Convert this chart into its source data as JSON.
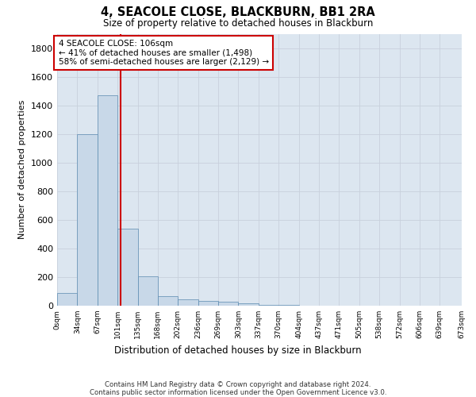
{
  "title": "4, SEACOLE CLOSE, BLACKBURN, BB1 2RA",
  "subtitle": "Size of property relative to detached houses in Blackburn",
  "xlabel": "Distribution of detached houses by size in Blackburn",
  "ylabel": "Number of detached properties",
  "footer_line1": "Contains HM Land Registry data © Crown copyright and database right 2024.",
  "footer_line2": "Contains public sector information licensed under the Open Government Licence v3.0.",
  "bar_edges": [
    0,
    33.5,
    67,
    100.5,
    134,
    167.5,
    201,
    234.5,
    268,
    301.5,
    335,
    368.5,
    402,
    435.5,
    469,
    502.5,
    536,
    569.5,
    603,
    636.5,
    673
  ],
  "bar_heights": [
    90,
    1200,
    1470,
    540,
    205,
    65,
    47,
    35,
    28,
    14,
    5,
    3,
    2,
    1,
    0,
    0,
    0,
    0,
    0,
    0
  ],
  "bar_color": "#c8d8e8",
  "bar_edge_color": "#5a8ab0",
  "grid_color": "#c8d0dc",
  "background_color": "#dce6f0",
  "red_line_x": 106,
  "annotation_text": "4 SEACOLE CLOSE: 106sqm\n← 41% of detached houses are smaller (1,498)\n58% of semi-detached houses are larger (2,129) →",
  "annotation_box_color": "#ffffff",
  "annotation_box_edge_color": "#cc0000",
  "red_line_color": "#cc0000",
  "ylim": [
    0,
    1900
  ],
  "yticks": [
    0,
    200,
    400,
    600,
    800,
    1000,
    1200,
    1400,
    1600,
    1800
  ],
  "xtick_labels": [
    "0sqm",
    "34sqm",
    "67sqm",
    "101sqm",
    "135sqm",
    "168sqm",
    "202sqm",
    "236sqm",
    "269sqm",
    "303sqm",
    "337sqm",
    "370sqm",
    "404sqm",
    "437sqm",
    "471sqm",
    "505sqm",
    "538sqm",
    "572sqm",
    "606sqm",
    "639sqm",
    "673sqm"
  ]
}
